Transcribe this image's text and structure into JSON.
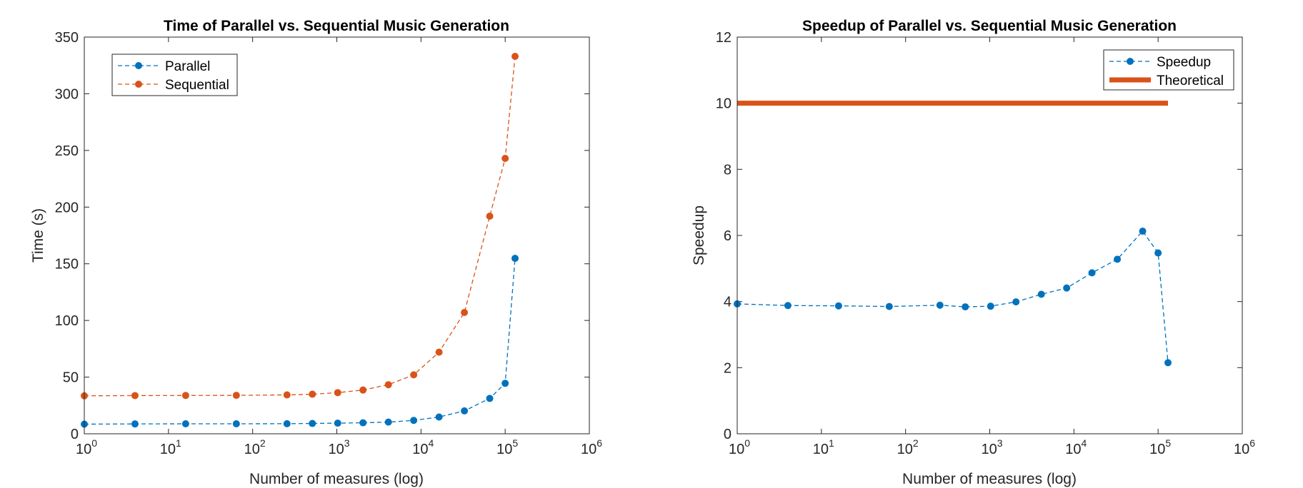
{
  "chart_data": [
    {
      "type": "line",
      "title": "Time of Parallel vs. Sequential Music Generation",
      "xlabel": "Number of measures (log)",
      "ylabel": "Time (s)",
      "xscale": "log",
      "xlim": [
        1,
        1000000
      ],
      "ylim": [
        0,
        350
      ],
      "xticks": [
        {
          "base": "10",
          "exp": "0"
        },
        {
          "base": "10",
          "exp": "1"
        },
        {
          "base": "10",
          "exp": "2"
        },
        {
          "base": "10",
          "exp": "3"
        },
        {
          "base": "10",
          "exp": "4"
        },
        {
          "base": "10",
          "exp": "5"
        },
        {
          "base": "10",
          "exp": "6"
        }
      ],
      "yticks": [
        "0",
        "50",
        "100",
        "150",
        "200",
        "250",
        "300",
        "350"
      ],
      "legend_position": "top-left",
      "series": [
        {
          "name": "Parallel",
          "color": "#0072BD",
          "style": "dashed-markers",
          "x": [
            1,
            4,
            16,
            64,
            256,
            512,
            1024,
            2048,
            4096,
            8192,
            16384,
            32768,
            65536,
            100000,
            131072
          ],
          "y": [
            8.5,
            8.7,
            8.8,
            8.8,
            8.9,
            9.1,
            9.4,
            9.7,
            10.3,
            11.8,
            14.8,
            20.2,
            31.2,
            44.5,
            154.8
          ]
        },
        {
          "name": "Sequential",
          "color": "#D95319",
          "style": "dashed-markers",
          "x": [
            1,
            4,
            16,
            64,
            256,
            512,
            1024,
            2048,
            4096,
            8192,
            16384,
            32768,
            65536,
            100000,
            131072
          ],
          "y": [
            33.5,
            33.7,
            33.8,
            33.9,
            34.3,
            34.9,
            36.3,
            38.6,
            43.3,
            52.0,
            72.0,
            107.0,
            192.0,
            243.0,
            333.0
          ]
        }
      ]
    },
    {
      "type": "line",
      "title": "Speedup of Parallel vs. Sequential Music Generation",
      "xlabel": "Number of measures (log)",
      "ylabel": "Speedup",
      "xscale": "log",
      "xlim": [
        1,
        1000000
      ],
      "ylim": [
        0,
        12
      ],
      "xticks": [
        {
          "base": "10",
          "exp": "0"
        },
        {
          "base": "10",
          "exp": "1"
        },
        {
          "base": "10",
          "exp": "2"
        },
        {
          "base": "10",
          "exp": "3"
        },
        {
          "base": "10",
          "exp": "4"
        },
        {
          "base": "10",
          "exp": "5"
        },
        {
          "base": "10",
          "exp": "6"
        }
      ],
      "yticks": [
        "0",
        "2",
        "4",
        "6",
        "8",
        "10",
        "12"
      ],
      "legend_position": "top-right",
      "series": [
        {
          "name": "Speedup",
          "color": "#0072BD",
          "style": "dashed-markers",
          "x": [
            1,
            4,
            16,
            64,
            256,
            512,
            1024,
            2048,
            4096,
            8192,
            16384,
            32768,
            65536,
            100000,
            131072
          ],
          "y": [
            3.93,
            3.88,
            3.87,
            3.85,
            3.89,
            3.84,
            3.86,
            3.99,
            4.22,
            4.41,
            4.87,
            5.28,
            6.13,
            5.47,
            2.15
          ]
        },
        {
          "name": "Theoretical",
          "color": "#D95319",
          "style": "solid-thick",
          "x": [
            1,
            131072
          ],
          "y": [
            10,
            10
          ]
        }
      ]
    }
  ]
}
